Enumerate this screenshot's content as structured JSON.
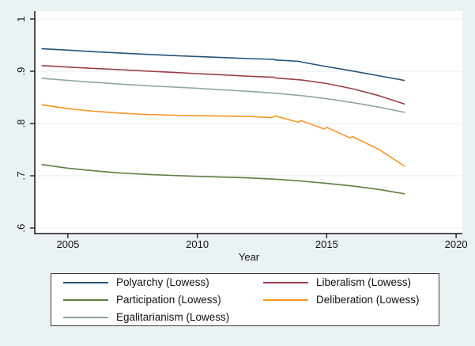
{
  "figure": {
    "background": "#eaf2f3",
    "plot_background": "#ffffff",
    "grid_color": "#e4eef0",
    "axis_color": "#141414",
    "legend_border_color": "#3c3c3c",
    "text_color": "#111111"
  },
  "chart_data": {
    "type": "line",
    "title": "",
    "xlabel": "Year",
    "ylabel": "",
    "xlim": [
      2003.72,
      2020.24
    ],
    "ylim": [
      0.5894,
      1.0152
    ],
    "grid": "horizontal gridlines at y ticks",
    "legend_position": "bottom",
    "x_ticks": [
      2005,
      2010,
      2015,
      2020
    ],
    "x_tick_labels": [
      "2005",
      "2010",
      "2015",
      "2020"
    ],
    "y_ticks": [
      1,
      0.9,
      0.8,
      0.7,
      0.6
    ],
    "y_tick_labels": [
      "1",
      ".9",
      ".8",
      ".7",
      ".6"
    ],
    "series": [
      {
        "name": "Polyarchy (Lowess)",
        "color": "#26527b",
        "points": [
          [
            2004,
            0.943
          ],
          [
            2005,
            0.9405
          ],
          [
            2006,
            0.9375
          ],
          [
            2007,
            0.935
          ],
          [
            2008,
            0.9325
          ],
          [
            2009,
            0.9302
          ],
          [
            2010,
            0.9282
          ],
          [
            2011,
            0.9262
          ],
          [
            2012,
            0.9243
          ],
          [
            2012.95,
            0.9228
          ],
          [
            2013.05,
            0.9215
          ],
          [
            2013.95,
            0.919
          ],
          [
            2014.05,
            0.9175
          ],
          [
            2015,
            0.909
          ],
          [
            2016,
            0.9005
          ],
          [
            2017,
            0.8915
          ],
          [
            2018,
            0.8825
          ]
        ]
      },
      {
        "name": "Liberalism (Lowess)",
        "color": "#9c3e48",
        "points": [
          [
            2004,
            0.911
          ],
          [
            2005,
            0.908
          ],
          [
            2006,
            0.9055
          ],
          [
            2007,
            0.903
          ],
          [
            2008,
            0.9005
          ],
          [
            2009,
            0.898
          ],
          [
            2010,
            0.8955
          ],
          [
            2011,
            0.893
          ],
          [
            2012,
            0.8905
          ],
          [
            2012.95,
            0.8885
          ],
          [
            2013.05,
            0.887
          ],
          [
            2014,
            0.8835
          ],
          [
            2015,
            0.8765
          ],
          [
            2016,
            0.8665
          ],
          [
            2017,
            0.8535
          ],
          [
            2018,
            0.8375
          ]
        ]
      },
      {
        "name": "Participation (Lowess)",
        "color": "#5f7e3e",
        "points": [
          [
            2004,
            0.7215
          ],
          [
            2005,
            0.7145
          ],
          [
            2006,
            0.7095
          ],
          [
            2007,
            0.7055
          ],
          [
            2008,
            0.7028
          ],
          [
            2009,
            0.7008
          ],
          [
            2010,
            0.699
          ],
          [
            2011,
            0.6975
          ],
          [
            2012,
            0.696
          ],
          [
            2013,
            0.6935
          ],
          [
            2014,
            0.69
          ],
          [
            2015,
            0.6855
          ],
          [
            2016,
            0.6805
          ],
          [
            2017,
            0.674
          ],
          [
            2018,
            0.6655
          ]
        ]
      },
      {
        "name": "Deliberation (Lowess)",
        "color": "#f89620",
        "points": [
          [
            2004,
            0.836
          ],
          [
            2005,
            0.8285
          ],
          [
            2006,
            0.8235
          ],
          [
            2007,
            0.82
          ],
          [
            2008,
            0.8175
          ],
          [
            2009,
            0.816
          ],
          [
            2010,
            0.815
          ],
          [
            2011,
            0.8142
          ],
          [
            2012,
            0.8135
          ],
          [
            2012.9,
            0.8112
          ],
          [
            2013.0,
            0.8148
          ],
          [
            2013.9,
            0.8025
          ],
          [
            2014.0,
            0.8058
          ],
          [
            2014.9,
            0.7895
          ],
          [
            2015.0,
            0.7928
          ],
          [
            2015.9,
            0.7725
          ],
          [
            2016.0,
            0.7748
          ],
          [
            2017,
            0.751
          ],
          [
            2017.9,
            0.7218
          ],
          [
            2018,
            0.7185
          ]
        ]
      },
      {
        "name": "Egalitarianism (Lowess)",
        "color": "#90a7a1",
        "points": [
          [
            2004,
            0.8865
          ],
          [
            2005,
            0.8825
          ],
          [
            2006,
            0.879
          ],
          [
            2007,
            0.8755
          ],
          [
            2008,
            0.8725
          ],
          [
            2009,
            0.87
          ],
          [
            2010,
            0.8675
          ],
          [
            2011,
            0.8645
          ],
          [
            2012,
            0.8615
          ],
          [
            2013,
            0.858
          ],
          [
            2014,
            0.8535
          ],
          [
            2015,
            0.8475
          ],
          [
            2016,
            0.84
          ],
          [
            2017,
            0.8315
          ],
          [
            2018,
            0.8215
          ]
        ]
      }
    ]
  }
}
